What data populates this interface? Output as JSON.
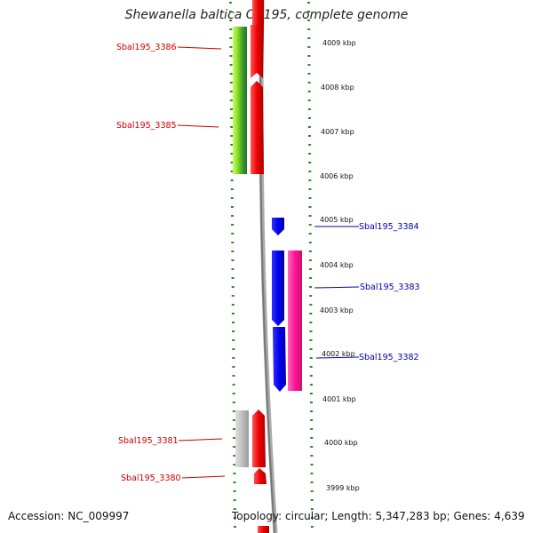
{
  "title": "Shewanella baltica OS195, complete genome",
  "accession": "Accession: NC_009997",
  "topology": "Topology: circular; Length: 5,347,283 bp; Genes: 4,639",
  "colors": {
    "reverse_label": "#cc0000",
    "forward_label": "#0000aa",
    "tick": "#2a8a2a",
    "backbone": "#888888"
  },
  "kbp_ticks": [
    "4009 kbp",
    "4008 kbp",
    "4007 kbp",
    "4006 kbp",
    "4005 kbp",
    "4004 kbp",
    "4003 kbp",
    "4002 kbp",
    "4001 kbp",
    "4000 kbp",
    "3999 kbp"
  ],
  "genes_reverse": [
    "Sbal195_3386",
    "Sbal195_3385",
    "Sbal195_3381",
    "Sbal195_3380"
  ],
  "genes_forward": [
    "Sbal195_3384",
    "Sbal195_3383",
    "Sbal195_3382"
  ]
}
